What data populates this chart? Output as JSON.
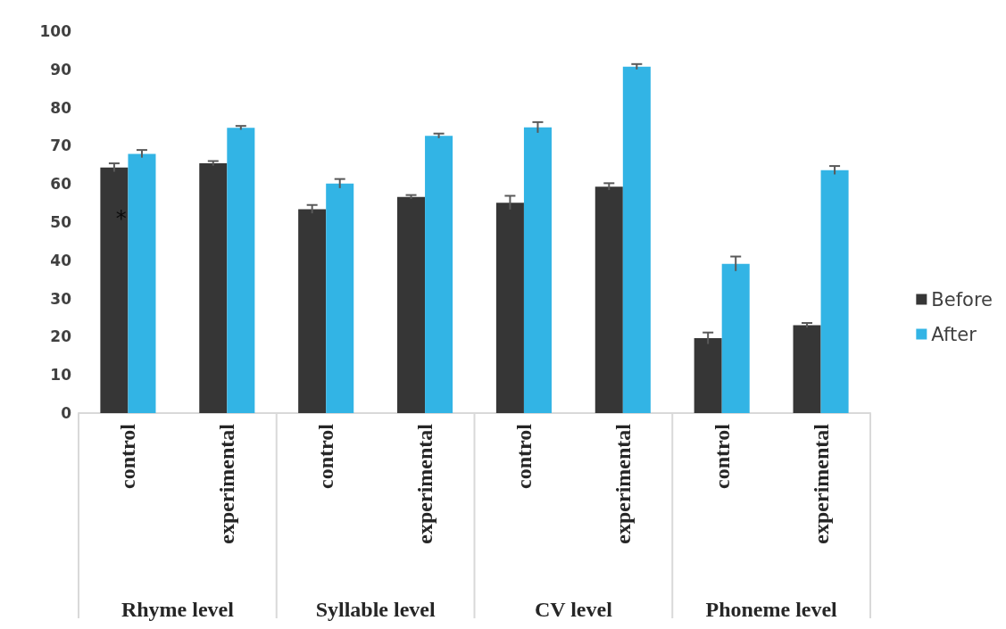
{
  "chart_data": {
    "type": "bar",
    "categories": [
      "control",
      "experimental",
      "control",
      "experimental",
      "control",
      "experimental",
      "control",
      "experimental"
    ],
    "series": [
      {
        "name": "Before",
        "color": "#363636",
        "values": [
          64.3,
          65.4,
          53.4,
          56.6,
          55.1,
          59.3,
          19.6,
          23.0
        ],
        "errors": [
          1.1,
          0.6,
          1.1,
          0.5,
          1.8,
          0.9,
          1.5,
          0.6
        ]
      },
      {
        "name": "After",
        "color": "#32b4e5",
        "values": [
          67.9,
          74.7,
          60.1,
          72.6,
          74.8,
          90.7,
          39.1,
          63.6
        ],
        "errors": [
          1.0,
          0.5,
          1.2,
          0.6,
          1.4,
          0.7,
          1.9,
          1.1
        ]
      }
    ],
    "annotations": [
      "Rhyme level",
      "Syllable level",
      "CV level",
      "Phoneme level",
      {
        "text": "*",
        "x": "control",
        "y": 51
      }
    ],
    "ylim": [
      0,
      100
    ],
    "yticks": [
      0,
      10,
      20,
      30,
      40,
      50,
      60,
      70,
      80,
      90,
      100
    ],
    "grid": false,
    "legend": "right"
  }
}
